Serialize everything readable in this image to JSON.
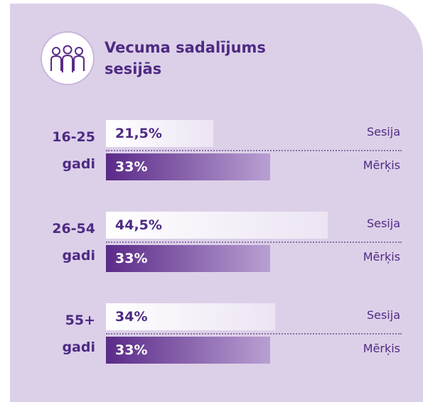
{
  "chart_data": {
    "type": "bar",
    "title": "Vecuma sadalījums sesijās",
    "categories": [
      "16-25 gadi",
      "26-54 gadi",
      "55+ gadi"
    ],
    "series": [
      {
        "name": "Sesija",
        "color": "#ffffff",
        "values": [
          21.5,
          44.5,
          34
        ],
        "value_labels": [
          "21,5%",
          "44,5%",
          "34%"
        ]
      },
      {
        "name": "Mērķis",
        "color": "#5a2a88",
        "values": [
          33,
          33,
          33
        ],
        "value_labels": [
          "33%",
          "33%",
          "33%"
        ]
      }
    ]
  }
}
